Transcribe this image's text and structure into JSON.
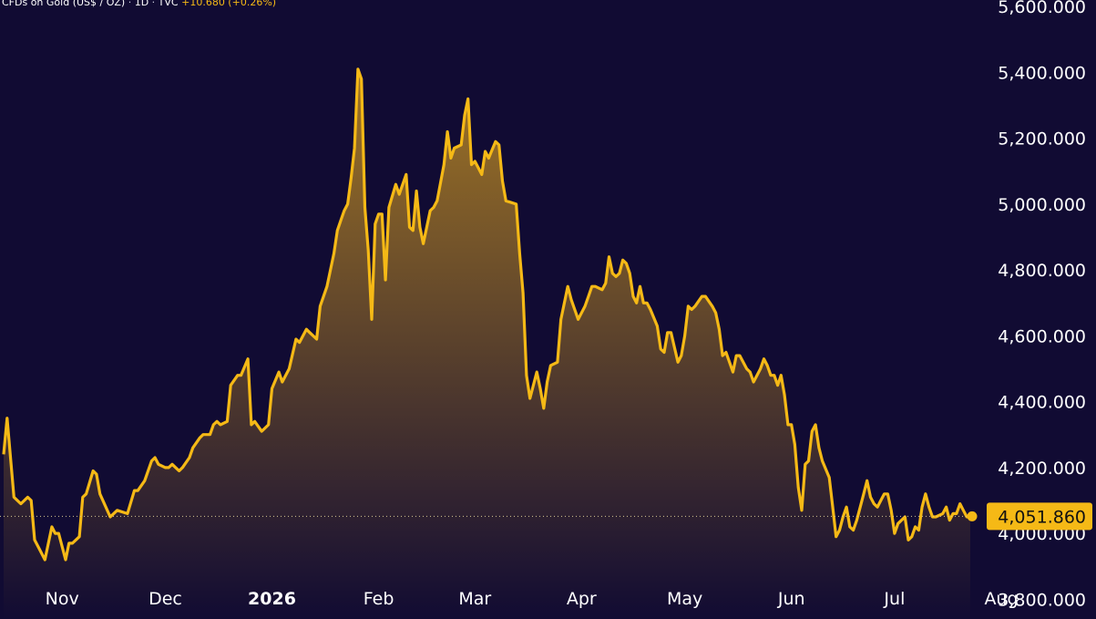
{
  "legend": {
    "symbol": "CFDs on Gold (US$ / OZ)",
    "sep1": " · ",
    "interval": "1D",
    "sep2": " · ",
    "source": "TVC",
    "change": "+10.680 (+0.26%)"
  },
  "colors": {
    "background": "#110b33",
    "line": "#f5b916",
    "fill_top": "#a77a25",
    "fill_bottom": "#110b33",
    "price_tag": "#f5b916"
  },
  "chart_data": {
    "type": "area",
    "title": "",
    "xlabel": "",
    "ylabel": "",
    "ylim": [
      3740,
      5620
    ],
    "xlim": [
      0,
      308
    ],
    "grid": false,
    "y_ticks": [
      {
        "value": 3800,
        "label": "3,800.000"
      },
      {
        "value": 4000,
        "label": "4,000.000"
      },
      {
        "value": 4200,
        "label": "4,200.000"
      },
      {
        "value": 4400,
        "label": "4,400.000"
      },
      {
        "value": 4600,
        "label": "4,600.000"
      },
      {
        "value": 4800,
        "label": "4,800.000"
      },
      {
        "value": 5000,
        "label": "5,000.000"
      },
      {
        "value": 5200,
        "label": "5,200.000"
      },
      {
        "value": 5400,
        "label": "5,400.000"
      },
      {
        "value": 5600,
        "label": "5,600.000"
      }
    ],
    "x_ticks": [
      {
        "day": 17,
        "label": "Nov",
        "bold": false
      },
      {
        "day": 47,
        "label": "Dec",
        "bold": false
      },
      {
        "day": 78,
        "label": "2026",
        "bold": true
      },
      {
        "day": 109,
        "label": "Feb",
        "bold": false
      },
      {
        "day": 137,
        "label": "Mar",
        "bold": false
      },
      {
        "day": 168,
        "label": "Apr",
        "bold": false
      },
      {
        "day": 198,
        "label": "May",
        "bold": false
      },
      {
        "day": 229,
        "label": "Jun",
        "bold": false
      },
      {
        "day": 259,
        "label": "Jul",
        "bold": false
      },
      {
        "day": 290,
        "label": "Aug",
        "bold": false
      }
    ],
    "last_price": {
      "value": 4051.86,
      "label": "4,051.860"
    },
    "series": [
      {
        "points": [
          [
            0,
            4240
          ],
          [
            1,
            4350
          ],
          [
            3,
            4110
          ],
          [
            5,
            4090
          ],
          [
            7,
            4110
          ],
          [
            8,
            4100
          ],
          [
            9,
            3980
          ],
          [
            10,
            3960
          ],
          [
            12,
            3920
          ],
          [
            14,
            4020
          ],
          [
            15,
            4000
          ],
          [
            16,
            4000
          ],
          [
            18,
            3920
          ],
          [
            19,
            3970
          ],
          [
            20,
            3970
          ],
          [
            22,
            3990
          ],
          [
            23,
            4110
          ],
          [
            24,
            4120
          ],
          [
            26,
            4190
          ],
          [
            27,
            4180
          ],
          [
            28,
            4120
          ],
          [
            31,
            4050
          ],
          [
            33,
            4070
          ],
          [
            36,
            4060
          ],
          [
            38,
            4130
          ],
          [
            39,
            4130
          ],
          [
            41,
            4160
          ],
          [
            43,
            4220
          ],
          [
            44,
            4230
          ],
          [
            45,
            4210
          ],
          [
            47,
            4200
          ],
          [
            48,
            4200
          ],
          [
            49,
            4210
          ],
          [
            51,
            4190
          ],
          [
            52,
            4200
          ],
          [
            54,
            4230
          ],
          [
            55,
            4260
          ],
          [
            57,
            4290
          ],
          [
            58,
            4300
          ],
          [
            60,
            4300
          ],
          [
            61,
            4330
          ],
          [
            62,
            4340
          ],
          [
            63,
            4330
          ],
          [
            65,
            4340
          ],
          [
            66,
            4450
          ],
          [
            68,
            4480
          ],
          [
            69,
            4480
          ],
          [
            71,
            4530
          ],
          [
            72,
            4330
          ],
          [
            73,
            4340
          ],
          [
            75,
            4310
          ],
          [
            77,
            4330
          ],
          [
            78,
            4440
          ],
          [
            80,
            4490
          ],
          [
            81,
            4460
          ],
          [
            83,
            4500
          ],
          [
            85,
            4590
          ],
          [
            86,
            4580
          ],
          [
            88,
            4620
          ],
          [
            89,
            4610
          ],
          [
            91,
            4590
          ],
          [
            92,
            4690
          ],
          [
            94,
            4750
          ],
          [
            96,
            4850
          ],
          [
            97,
            4920
          ],
          [
            98,
            4950
          ],
          [
            99,
            4980
          ],
          [
            100,
            5000
          ],
          [
            101,
            5080
          ],
          [
            102,
            5170
          ],
          [
            103,
            5410
          ],
          [
            104,
            5380
          ],
          [
            105,
            4990
          ],
          [
            106,
            4860
          ],
          [
            107,
            4650
          ],
          [
            108,
            4940
          ],
          [
            109,
            4970
          ],
          [
            110,
            4970
          ],
          [
            111,
            4770
          ],
          [
            112,
            4990
          ],
          [
            114,
            5060
          ],
          [
            115,
            5030
          ],
          [
            117,
            5090
          ],
          [
            118,
            4930
          ],
          [
            119,
            4920
          ],
          [
            120,
            5040
          ],
          [
            121,
            4930
          ],
          [
            122,
            4880
          ],
          [
            124,
            4980
          ],
          [
            125,
            4990
          ],
          [
            126,
            5010
          ],
          [
            128,
            5120
          ],
          [
            129,
            5220
          ],
          [
            130,
            5140
          ],
          [
            131,
            5170
          ],
          [
            133,
            5180
          ],
          [
            134,
            5270
          ],
          [
            135,
            5320
          ],
          [
            136,
            5120
          ],
          [
            137,
            5130
          ],
          [
            138,
            5110
          ],
          [
            139,
            5090
          ],
          [
            140,
            5160
          ],
          [
            141,
            5140
          ],
          [
            143,
            5190
          ],
          [
            144,
            5180
          ],
          [
            145,
            5070
          ],
          [
            146,
            5010
          ],
          [
            149,
            5000
          ],
          [
            150,
            4850
          ],
          [
            151,
            4730
          ],
          [
            152,
            4480
          ],
          [
            153,
            4410
          ],
          [
            155,
            4490
          ],
          [
            156,
            4440
          ],
          [
            157,
            4380
          ],
          [
            158,
            4460
          ],
          [
            159,
            4510
          ],
          [
            161,
            4520
          ],
          [
            162,
            4650
          ],
          [
            164,
            4750
          ],
          [
            165,
            4710
          ],
          [
            166,
            4680
          ],
          [
            167,
            4650
          ],
          [
            169,
            4690
          ],
          [
            170,
            4720
          ],
          [
            171,
            4750
          ],
          [
            172,
            4750
          ],
          [
            174,
            4740
          ],
          [
            175,
            4760
          ],
          [
            176,
            4840
          ],
          [
            177,
            4790
          ],
          [
            178,
            4780
          ],
          [
            179,
            4790
          ],
          [
            180,
            4830
          ],
          [
            181,
            4820
          ],
          [
            182,
            4790
          ],
          [
            183,
            4720
          ],
          [
            184,
            4700
          ],
          [
            185,
            4750
          ],
          [
            186,
            4700
          ],
          [
            187,
            4700
          ],
          [
            188,
            4680
          ],
          [
            190,
            4630
          ],
          [
            191,
            4560
          ],
          [
            192,
            4550
          ],
          [
            193,
            4610
          ],
          [
            194,
            4610
          ],
          [
            196,
            4520
          ],
          [
            197,
            4540
          ],
          [
            198,
            4600
          ],
          [
            199,
            4690
          ],
          [
            200,
            4680
          ],
          [
            201,
            4690
          ],
          [
            203,
            4720
          ],
          [
            204,
            4720
          ],
          [
            206,
            4690
          ],
          [
            207,
            4670
          ],
          [
            208,
            4620
          ],
          [
            209,
            4540
          ],
          [
            210,
            4550
          ],
          [
            212,
            4490
          ],
          [
            213,
            4540
          ],
          [
            214,
            4540
          ],
          [
            216,
            4500
          ],
          [
            217,
            4490
          ],
          [
            218,
            4460
          ],
          [
            219,
            4480
          ],
          [
            220,
            4500
          ],
          [
            221,
            4530
          ],
          [
            222,
            4510
          ],
          [
            223,
            4480
          ],
          [
            224,
            4480
          ],
          [
            225,
            4450
          ],
          [
            226,
            4480
          ],
          [
            227,
            4420
          ],
          [
            228,
            4330
          ],
          [
            229,
            4330
          ],
          [
            230,
            4270
          ],
          [
            231,
            4140
          ],
          [
            232,
            4070
          ],
          [
            233,
            4210
          ],
          [
            234,
            4220
          ],
          [
            235,
            4310
          ],
          [
            236,
            4330
          ],
          [
            237,
            4260
          ],
          [
            238,
            4220
          ],
          [
            240,
            4170
          ],
          [
            241,
            4080
          ],
          [
            242,
            3990
          ],
          [
            243,
            4010
          ],
          [
            244,
            4050
          ],
          [
            245,
            4080
          ],
          [
            246,
            4020
          ],
          [
            247,
            4010
          ],
          [
            248,
            4040
          ],
          [
            250,
            4120
          ],
          [
            251,
            4160
          ],
          [
            252,
            4110
          ],
          [
            253,
            4090
          ],
          [
            254,
            4080
          ],
          [
            255,
            4100
          ],
          [
            256,
            4120
          ],
          [
            257,
            4120
          ],
          [
            258,
            4070
          ],
          [
            259,
            4000
          ],
          [
            260,
            4030
          ],
          [
            261,
            4040
          ],
          [
            262,
            4050
          ],
          [
            263,
            3980
          ],
          [
            264,
            3990
          ],
          [
            265,
            4020
          ],
          [
            266,
            4010
          ],
          [
            267,
            4080
          ],
          [
            268,
            4120
          ],
          [
            269,
            4080
          ],
          [
            270,
            4050
          ],
          [
            271,
            4050
          ],
          [
            273,
            4060
          ],
          [
            274,
            4080
          ],
          [
            275,
            4040
          ],
          [
            276,
            4060
          ],
          [
            277,
            4060
          ],
          [
            278,
            4090
          ],
          [
            279,
            4070
          ],
          [
            280,
            4050
          ],
          [
            281,
            4052
          ]
        ]
      }
    ]
  }
}
